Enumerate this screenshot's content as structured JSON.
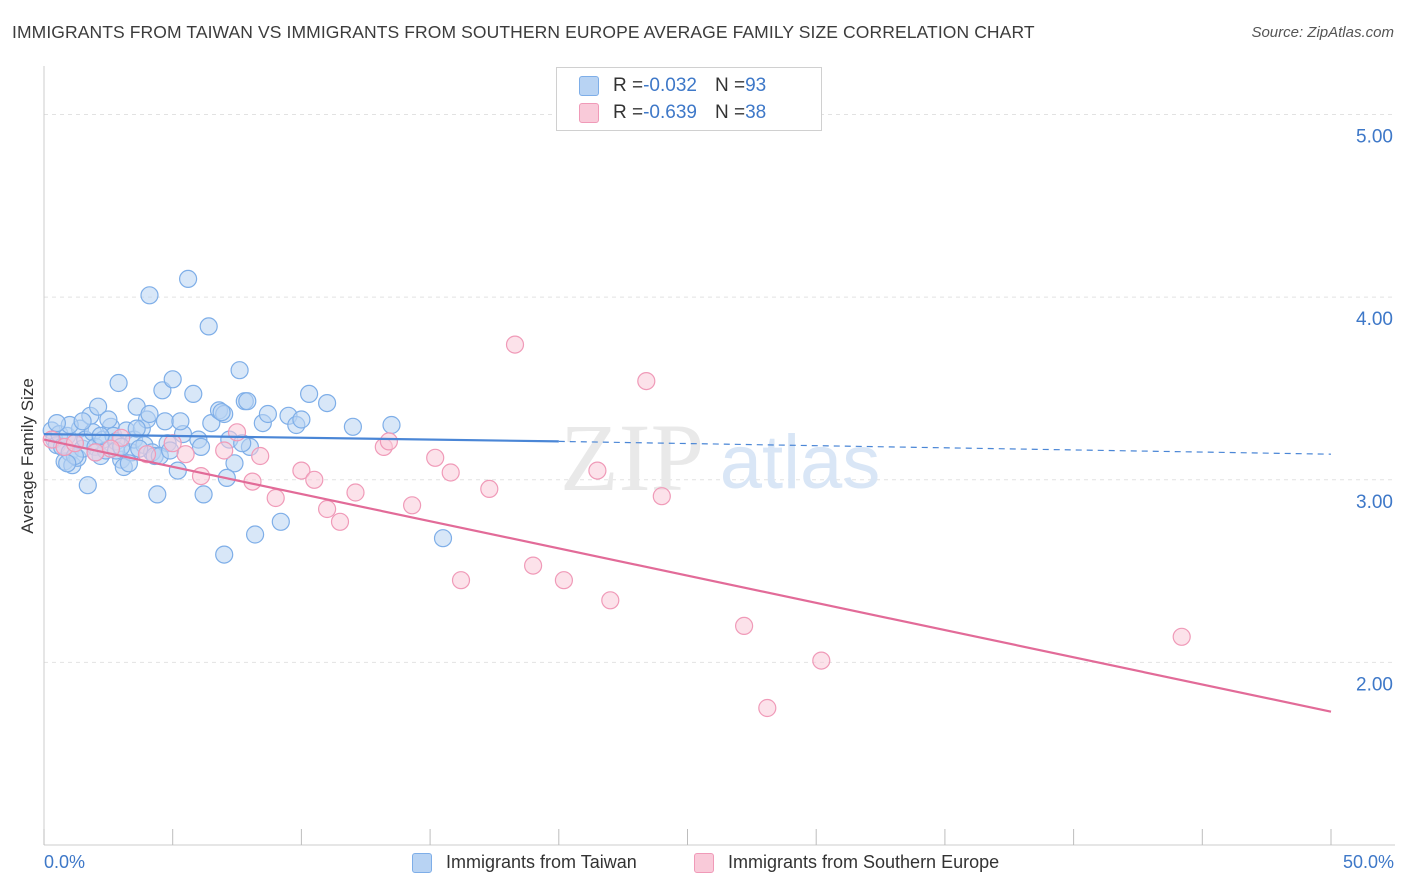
{
  "title": "IMMIGRANTS FROM TAIWAN VS IMMIGRANTS FROM SOUTHERN EUROPE AVERAGE FAMILY SIZE CORRELATION CHART",
  "source": "Source: ZipAtlas.com",
  "watermark": {
    "zip": "ZIP",
    "atlas": "atlas"
  },
  "legend": {
    "rows": [
      {
        "r_label": "R = ",
        "r_value": "-0.032",
        "n_label": "N = ",
        "n_value": "93",
        "color": "#7eaee8",
        "fill": "#b8d3f3"
      },
      {
        "r_label": "R = ",
        "r_value": "-0.639",
        "n_label": "N = ",
        "n_value": "38",
        "color": "#f09ab8",
        "fill": "#f9cad9"
      }
    ]
  },
  "chart_data": {
    "type": "scatter",
    "title": "IMMIGRANTS FROM TAIWAN VS IMMIGRANTS FROM SOUTHERN EUROPE AVERAGE FAMILY SIZE CORRELATION CHART",
    "xlabel": "",
    "ylabel": "Average Family Size",
    "xlim": [
      0,
      50
    ],
    "ylim": [
      1.0,
      5.2
    ],
    "x_tick_labels": {
      "left": "0.0%",
      "right": "50.0%"
    },
    "y_ticks": [
      {
        "value": 5.0,
        "label": "5.00"
      },
      {
        "value": 4.0,
        "label": "4.00"
      },
      {
        "value": 3.0,
        "label": "3.00"
      },
      {
        "value": 2.0,
        "label": "2.00"
      }
    ],
    "series": [
      {
        "name": "Immigrants from Taiwan",
        "color": "#4a86d6",
        "fill": "#b8d3f3",
        "stroke": "#7eaee8",
        "trend": {
          "x0": 0,
          "y0": 3.25,
          "x1": 20,
          "y1": 3.21,
          "dash_to_x": 50,
          "dash_to_y": 3.14
        },
        "points": [
          [
            0.3,
            3.27
          ],
          [
            0.4,
            3.22
          ],
          [
            0.5,
            3.19
          ],
          [
            0.6,
            3.25
          ],
          [
            0.7,
            3.18
          ],
          [
            0.8,
            3.1
          ],
          [
            0.9,
            3.24
          ],
          [
            1.0,
            3.15
          ],
          [
            1.1,
            3.08
          ],
          [
            1.2,
            3.2
          ],
          [
            1.3,
            3.12
          ],
          [
            1.4,
            3.28
          ],
          [
            1.5,
            3.17
          ],
          [
            1.6,
            3.22
          ],
          [
            1.7,
            2.97
          ],
          [
            1.8,
            3.35
          ],
          [
            1.9,
            3.26
          ],
          [
            2.0,
            3.18
          ],
          [
            2.1,
            3.4
          ],
          [
            2.2,
            3.13
          ],
          [
            2.3,
            3.22
          ],
          [
            2.4,
            3.16
          ],
          [
            2.6,
            3.29
          ],
          [
            2.7,
            3.24
          ],
          [
            2.8,
            3.21
          ],
          [
            2.9,
            3.53
          ],
          [
            3.0,
            3.11
          ],
          [
            3.1,
            3.07
          ],
          [
            3.2,
            3.27
          ],
          [
            3.4,
            3.15
          ],
          [
            3.5,
            3.22
          ],
          [
            3.6,
            3.4
          ],
          [
            3.8,
            3.28
          ],
          [
            3.9,
            3.19
          ],
          [
            4.0,
            3.33
          ],
          [
            4.1,
            3.36
          ],
          [
            4.2,
            3.15
          ],
          [
            4.4,
            2.92
          ],
          [
            4.6,
            3.49
          ],
          [
            4.7,
            3.32
          ],
          [
            4.8,
            3.2
          ],
          [
            5.0,
            3.55
          ],
          [
            5.2,
            3.05
          ],
          [
            5.4,
            3.25
          ],
          [
            5.6,
            4.1
          ],
          [
            5.8,
            3.47
          ],
          [
            6.0,
            3.22
          ],
          [
            4.3,
            3.13
          ],
          [
            3.3,
            3.09
          ],
          [
            2.5,
            3.33
          ],
          [
            1.0,
            3.3
          ],
          [
            0.5,
            3.31
          ],
          [
            1.5,
            3.32
          ],
          [
            2.0,
            3.15
          ],
          [
            4.1,
            4.01
          ],
          [
            4.5,
            3.13
          ],
          [
            3.7,
            3.17
          ],
          [
            6.2,
            2.92
          ],
          [
            6.5,
            3.31
          ],
          [
            6.8,
            3.38
          ],
          [
            7.0,
            3.36
          ],
          [
            7.2,
            3.22
          ],
          [
            7.4,
            3.09
          ],
          [
            7.6,
            3.6
          ],
          [
            7.8,
            3.43
          ],
          [
            7.9,
            3.43
          ],
          [
            8.2,
            2.7
          ],
          [
            8.5,
            3.31
          ],
          [
            6.4,
            3.84
          ],
          [
            8.7,
            3.36
          ],
          [
            9.2,
            2.77
          ],
          [
            9.5,
            3.35
          ],
          [
            9.8,
            3.3
          ],
          [
            10.3,
            3.47
          ],
          [
            10.0,
            3.33
          ],
          [
            11.0,
            3.42
          ],
          [
            12.0,
            3.29
          ],
          [
            13.5,
            3.3
          ],
          [
            15.5,
            2.68
          ],
          [
            7.0,
            2.59
          ],
          [
            8.0,
            3.18
          ],
          [
            7.1,
            3.01
          ],
          [
            5.3,
            3.32
          ],
          [
            4.9,
            3.16
          ],
          [
            3.6,
            3.28
          ],
          [
            6.1,
            3.18
          ],
          [
            6.9,
            3.37
          ],
          [
            7.7,
            3.2
          ],
          [
            2.8,
            3.16
          ],
          [
            1.2,
            3.13
          ],
          [
            0.9,
            3.09
          ],
          [
            2.2,
            3.24
          ],
          [
            3.0,
            3.18
          ]
        ]
      },
      {
        "name": "Immigrants from Southern Europe",
        "color": "#e26b98",
        "fill": "#f9cad9",
        "stroke": "#f09ab8",
        "trend": {
          "x0": 0,
          "y0": 3.22,
          "x1": 50,
          "y1": 1.73
        },
        "points": [
          [
            0.3,
            3.22
          ],
          [
            0.8,
            3.18
          ],
          [
            1.2,
            3.2
          ],
          [
            2.0,
            3.15
          ],
          [
            3.0,
            3.23
          ],
          [
            4.0,
            3.14
          ],
          [
            5.0,
            3.2
          ],
          [
            5.5,
            3.14
          ],
          [
            6.1,
            3.02
          ],
          [
            7.0,
            3.16
          ],
          [
            7.5,
            3.26
          ],
          [
            8.1,
            2.99
          ],
          [
            8.4,
            3.13
          ],
          [
            9.0,
            2.9
          ],
          [
            10.0,
            3.05
          ],
          [
            10.5,
            3.0
          ],
          [
            11.0,
            2.84
          ],
          [
            11.5,
            2.77
          ],
          [
            12.1,
            2.93
          ],
          [
            13.2,
            3.18
          ],
          [
            13.4,
            3.21
          ],
          [
            14.3,
            2.86
          ],
          [
            15.2,
            3.12
          ],
          [
            15.8,
            3.04
          ],
          [
            16.2,
            2.45
          ],
          [
            17.3,
            2.95
          ],
          [
            18.3,
            3.74
          ],
          [
            19.0,
            2.53
          ],
          [
            20.2,
            2.45
          ],
          [
            21.5,
            3.05
          ],
          [
            22.0,
            2.34
          ],
          [
            23.4,
            3.54
          ],
          [
            24.0,
            2.91
          ],
          [
            27.2,
            2.2
          ],
          [
            28.1,
            1.75
          ],
          [
            30.2,
            2.01
          ],
          [
            44.2,
            2.14
          ],
          [
            2.6,
            3.17
          ]
        ]
      }
    ]
  },
  "bottom_legend": [
    {
      "label": "Immigrants from Taiwan",
      "fill": "#b8d3f3",
      "stroke": "#7eaee8"
    },
    {
      "label": "Immigrants from Southern Europe",
      "fill": "#f9cad9",
      "stroke": "#f09ab8"
    }
  ]
}
